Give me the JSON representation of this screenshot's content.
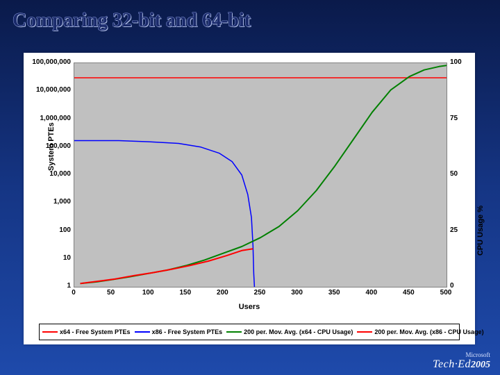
{
  "title": "Comparing 32-bit and 64-bit",
  "footer": {
    "ms": "Microsoft",
    "brand": "Tech·Ed",
    "year": "2005"
  },
  "chart": {
    "type": "line",
    "plot_bg": "#c0c0c0",
    "panel_bg": "#ffffff",
    "x": {
      "label": "Users",
      "min": 0,
      "max": 500,
      "ticks": [
        0,
        50,
        100,
        150,
        200,
        250,
        300,
        350,
        400,
        450,
        500
      ]
    },
    "y_left": {
      "label": "System PTEs",
      "scale": "log",
      "min": 1,
      "max": 100000000,
      "ticks": [
        1,
        10,
        100,
        1000,
        10000,
        100000,
        1000000,
        10000000,
        100000000
      ],
      "tick_labels": [
        "1",
        "10",
        "100",
        "1,000",
        "10,000",
        "100,000",
        "1,000,000",
        "10,000,000",
        "100,000,000"
      ]
    },
    "y_right": {
      "label": "CPU Usage %",
      "scale": "linear",
      "min": 0,
      "max": 100,
      "ticks": [
        0,
        25,
        50,
        75,
        100
      ]
    },
    "series": [
      {
        "name": "x64 - Free System PTEs",
        "color": "#ff0000",
        "axis": "left",
        "width": 1.5,
        "data": [
          [
            0,
            30000000
          ],
          [
            500,
            30000000
          ]
        ]
      },
      {
        "name": "x86 - Free System PTEs",
        "color": "#0000ff",
        "axis": "left",
        "width": 1.5,
        "data": [
          [
            0,
            170000
          ],
          [
            35,
            170000
          ],
          [
            60,
            170000
          ],
          [
            100,
            155000
          ],
          [
            140,
            135000
          ],
          [
            170,
            100000
          ],
          [
            195,
            60000
          ],
          [
            212,
            30000
          ],
          [
            225,
            10000
          ],
          [
            233,
            2000
          ],
          [
            238,
            300
          ],
          [
            240,
            30
          ],
          [
            241,
            3
          ],
          [
            242,
            1
          ],
          [
            242,
            1
          ],
          [
            243,
            null
          ]
        ]
      },
      {
        "name": "200 per. Mov. Avg. (x64 - CPU Usage)",
        "color": "#008000",
        "axis": "right",
        "width": 2,
        "data": [
          [
            8,
            1.5
          ],
          [
            30,
            2.2
          ],
          [
            50,
            3.2
          ],
          [
            75,
            4.5
          ],
          [
            100,
            6
          ],
          [
            125,
            7.5
          ],
          [
            150,
            9.5
          ],
          [
            175,
            12
          ],
          [
            200,
            15
          ],
          [
            225,
            18
          ],
          [
            250,
            22
          ],
          [
            275,
            27
          ],
          [
            300,
            34
          ],
          [
            325,
            43
          ],
          [
            350,
            54
          ],
          [
            375,
            66
          ],
          [
            400,
            78
          ],
          [
            425,
            88
          ],
          [
            450,
            94
          ],
          [
            470,
            97
          ],
          [
            490,
            98.5
          ],
          [
            500,
            99
          ]
        ]
      },
      {
        "name": "200 per. Mov. Avg. (x86 - CPU Usage)",
        "color": "#ff0000",
        "axis": "right",
        "width": 2,
        "data": [
          [
            8,
            1.5
          ],
          [
            30,
            2.4
          ],
          [
            55,
            3.5
          ],
          [
            80,
            5
          ],
          [
            105,
            6.3
          ],
          [
            130,
            7.8
          ],
          [
            155,
            9.5
          ],
          [
            180,
            11.5
          ],
          [
            205,
            14
          ],
          [
            225,
            16.2
          ],
          [
            240,
            17
          ]
        ]
      }
    ],
    "legend": {
      "items": [
        {
          "color": "#ff0000",
          "label": "x64 - Free System PTEs"
        },
        {
          "color": "#0000ff",
          "label": "x86 - Free System PTEs"
        },
        {
          "color": "#008000",
          "label": "200 per. Mov. Avg. (x64 - CPU Usage)"
        },
        {
          "color": "#ff0000",
          "label": "200 per. Mov. Avg. (x86 - CPU Usage)"
        }
      ]
    }
  }
}
